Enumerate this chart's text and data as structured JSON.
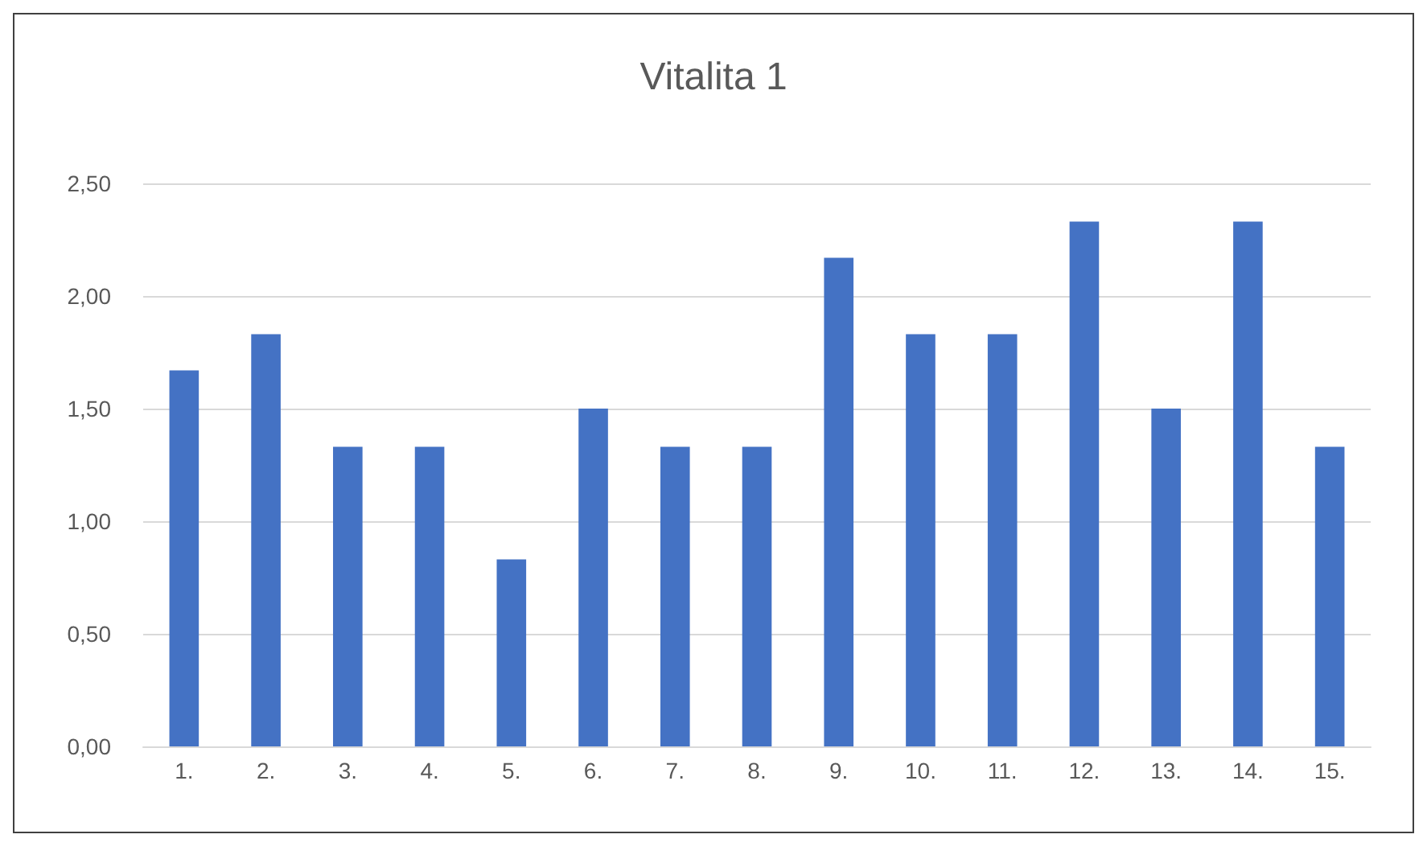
{
  "chart_data": {
    "type": "bar",
    "title": "Vitalita 1",
    "categories": [
      "1.",
      "2.",
      "3.",
      "4.",
      "5.",
      "6.",
      "7.",
      "8.",
      "9.",
      "10.",
      "11.",
      "12.",
      "13.",
      "14.",
      "15."
    ],
    "values": [
      1.67,
      1.83,
      1.33,
      1.33,
      0.83,
      1.5,
      1.33,
      1.33,
      2.17,
      1.83,
      1.83,
      2.33,
      1.5,
      2.33,
      1.33
    ],
    "color": "#4472c4",
    "ylim": [
      0,
      2.5
    ],
    "yticks": [
      {
        "value": 0,
        "label": "0,00"
      },
      {
        "value": 0.5,
        "label": "0,50"
      },
      {
        "value": 1,
        "label": "1,00"
      },
      {
        "value": 1.5,
        "label": "1,50"
      },
      {
        "value": 2,
        "label": "2,00"
      },
      {
        "value": 2.5,
        "label": "2,50"
      }
    ],
    "grid": "y"
  }
}
